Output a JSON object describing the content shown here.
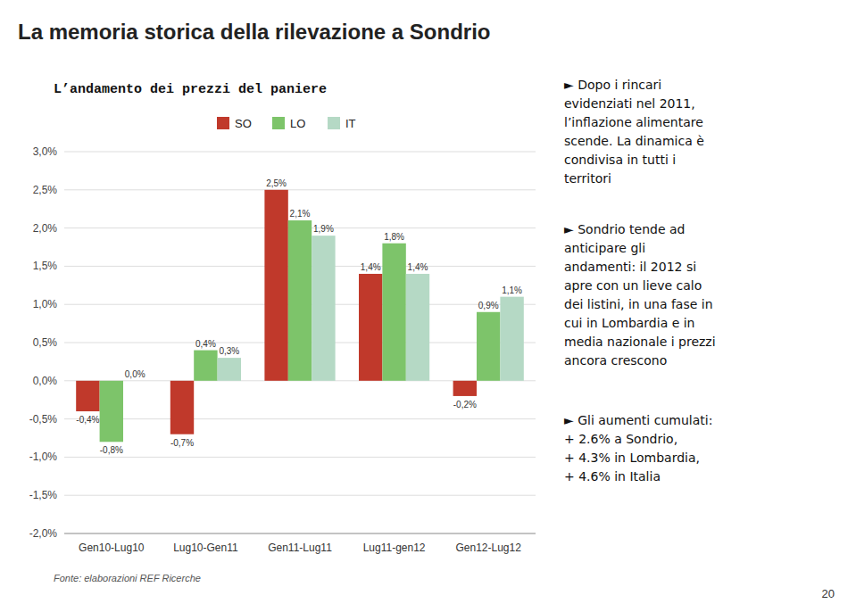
{
  "chart_data": {
    "type": "bar",
    "title": "La memoria storica della rilevazione a Sondrio",
    "subtitle": "L’andamento dei prezzi del paniere",
    "categories": [
      "Gen10-Lug10",
      "Lug10-Gen11",
      "Gen11-Lug11",
      "Lug11-gen12",
      "Gen12-Lug12"
    ],
    "series": [
      {
        "name": "SO",
        "color": "#c0392b",
        "values": [
          -0.4,
          -0.7,
          2.5,
          1.4,
          -0.2
        ],
        "value_labels": [
          "-0,4%",
          "-0,7%",
          "2,5%",
          "1,4%",
          "-0,2%"
        ]
      },
      {
        "name": "LO",
        "color": "#7dc46a",
        "values": [
          -0.8,
          0.4,
          2.1,
          1.8,
          0.9
        ],
        "value_labels": [
          "-0,8%",
          "0,4%",
          "2,1%",
          "1,8%",
          "0,9%"
        ]
      },
      {
        "name": "IT",
        "color": "#b5d9c5",
        "values": [
          0.0,
          0.3,
          1.9,
          1.4,
          1.1
        ],
        "value_labels": [
          "0,0%",
          "0,3%",
          "1,9%",
          "1,4%",
          "1,1%"
        ]
      }
    ],
    "ylim": [
      -2.0,
      3.0
    ],
    "yticks": [
      {
        "value": -2.0,
        "label": "-2,0%"
      },
      {
        "value": -1.5,
        "label": "-1,5%"
      },
      {
        "value": -1.0,
        "label": "-1,0%"
      },
      {
        "value": -0.5,
        "label": "-0,5%"
      },
      {
        "value": 0.0,
        "label": "0,0%"
      },
      {
        "value": 0.5,
        "label": "0,5%"
      },
      {
        "value": 1.0,
        "label": "1,0%"
      },
      {
        "value": 1.5,
        "label": "1,5%"
      },
      {
        "value": 2.0,
        "label": "2,0%"
      },
      {
        "value": 2.5,
        "label": "2,5%"
      },
      {
        "value": 3.0,
        "label": "3,0%"
      }
    ],
    "grid": true,
    "legend": "top",
    "data_labels": true,
    "annotations": [
      "Fonte: elaborazioni REF Ricerche",
      "►  Dopo i rincari\nevidenziati nel 2011,\nl’inflazione alimentare\nscende. La dinamica è\ncondivisa in tutti i\nterritori",
      "►  Sondrio tende ad\nanticipare gli\nandamenti: il 2012 si\napre con un lieve calo\ndei listini, in una fase in\ncui in Lombardia e in\nmedia nazionale i prezzi\nancora crescono",
      "►  Gli aumenti cumulati:\n+ 2.6%  a Sondrio,\n+ 4.3%  in Lombardia,\n+ 4.6%  in Italia",
      "20"
    ]
  }
}
